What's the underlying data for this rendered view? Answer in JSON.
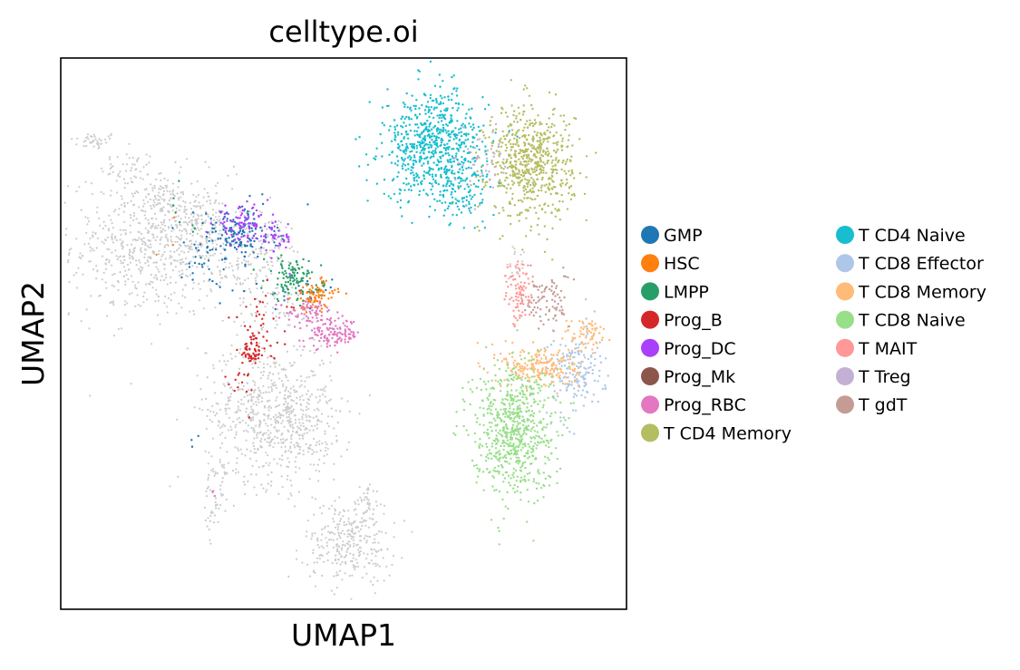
{
  "chart_data": {
    "type": "scatter",
    "title": "celltype.oi",
    "xlabel": "UMAP1",
    "ylabel": "UMAP2",
    "xticks": false,
    "yticks": false,
    "grid": false,
    "xlim": [
      0,
      100
    ],
    "ylim": [
      0,
      100
    ],
    "legend_placement": "right",
    "background_category": {
      "color": "#cccccc"
    },
    "series": [
      {
        "name": "GMP",
        "color": "#1f77b4"
      },
      {
        "name": "HSC",
        "color": "#ff7f0e"
      },
      {
        "name": "LMPP",
        "color": "#279e68"
      },
      {
        "name": "Prog_B",
        "color": "#d62728"
      },
      {
        "name": "Prog_DC",
        "color": "#aa40fc"
      },
      {
        "name": "Prog_Mk",
        "color": "#8c564b"
      },
      {
        "name": "Prog_RBC",
        "color": "#e377c2"
      },
      {
        "name": "T CD4 Memory",
        "color": "#b5bd61"
      },
      {
        "name": "T CD4 Naive",
        "color": "#17becf"
      },
      {
        "name": "T CD8 Effector",
        "color": "#aec7e8"
      },
      {
        "name": "T CD8 Memory",
        "color": "#ffbb78"
      },
      {
        "name": "T CD8 Naive",
        "color": "#98df8a"
      },
      {
        "name": "T MAIT",
        "color": "#ff9896"
      },
      {
        "name": "T Treg",
        "color": "#c5b0d5"
      },
      {
        "name": "T gdT",
        "color": "#c49c94"
      }
    ],
    "clusters": [
      {
        "category": "background",
        "center": [
          6,
          85
        ],
        "spread": [
          2.2,
          0.8
        ],
        "n": 40
      },
      {
        "category": "background",
        "center": [
          12,
          80
        ],
        "spread": [
          2.5,
          1.5
        ],
        "n": 40
      },
      {
        "category": "background",
        "center": [
          17,
          75
        ],
        "spread": [
          2,
          2
        ],
        "n": 40
      },
      {
        "category": "background",
        "center": [
          16,
          66
        ],
        "spread": [
          7,
          6.5
        ],
        "n": 650
      },
      {
        "category": "background",
        "center": [
          24,
          70
        ],
        "spread": [
          4,
          3
        ],
        "n": 150
      },
      {
        "category": "background",
        "center": [
          32,
          62
        ],
        "spread": [
          4,
          2.5
        ],
        "n": 90
      },
      {
        "category": "background",
        "center": [
          37,
          67
        ],
        "spread": [
          3,
          2.5
        ],
        "n": 70
      },
      {
        "category": "background",
        "center": [
          38,
          55
        ],
        "spread": [
          4,
          2
        ],
        "n": 60
      },
      {
        "category": "background",
        "center": [
          37,
          36
        ],
        "spread": [
          5.5,
          6.5
        ],
        "n": 650
      },
      {
        "category": "background",
        "center": [
          44,
          32
        ],
        "spread": [
          3,
          5
        ],
        "n": 90
      },
      {
        "category": "background",
        "center": [
          28,
          24
        ],
        "spread": [
          1.2,
          2.5
        ],
        "n": 30
      },
      {
        "category": "background",
        "center": [
          27,
          17
        ],
        "spread": [
          0.8,
          2.5
        ],
        "n": 25
      },
      {
        "category": "background",
        "center": [
          51,
          12
        ],
        "spread": [
          4,
          3.5
        ],
        "n": 280
      },
      {
        "category": "background",
        "center": [
          54,
          19
        ],
        "spread": [
          1.2,
          2
        ],
        "n": 45
      },
      {
        "category": "background",
        "center": [
          81,
          63
        ],
        "spread": [
          1.2,
          2
        ],
        "n": 15
      },
      {
        "category": "GMP",
        "center": [
          31,
          68
        ],
        "spread": [
          3.5,
          2.5
        ],
        "n": 140
      },
      {
        "category": "GMP",
        "center": [
          27,
          63
        ],
        "spread": [
          3,
          3
        ],
        "n": 35
      },
      {
        "category": "GMP",
        "center": [
          44,
          57
        ],
        "spread": [
          2,
          1.5
        ],
        "n": 20
      },
      {
        "category": "GMP",
        "center": [
          24,
          31
        ],
        "spread": [
          1,
          1
        ],
        "n": 3
      },
      {
        "category": "HSC",
        "center": [
          45,
          57
        ],
        "spread": [
          1.8,
          1.5
        ],
        "n": 90
      },
      {
        "category": "HSC",
        "center": [
          18,
          67
        ],
        "spread": [
          2,
          2
        ],
        "n": 3
      },
      {
        "category": "LMPP",
        "center": [
          41,
          60
        ],
        "spread": [
          2.5,
          2
        ],
        "n": 110
      },
      {
        "category": "LMPP",
        "center": [
          20,
          70
        ],
        "spread": [
          3,
          3
        ],
        "n": 8
      },
      {
        "category": "Prog_B",
        "center": [
          34,
          47
        ],
        "spread": [
          1.3,
          1.5
        ],
        "n": 60
      },
      {
        "category": "Prog_B",
        "center": [
          36,
          52
        ],
        "spread": [
          3,
          3
        ],
        "n": 35
      },
      {
        "category": "Prog_B",
        "center": [
          32,
          41
        ],
        "spread": [
          1.5,
          2
        ],
        "n": 15
      },
      {
        "category": "Prog_DC",
        "center": [
          32,
          70
        ],
        "spread": [
          2.5,
          1.5
        ],
        "n": 90
      },
      {
        "category": "Prog_DC",
        "center": [
          38,
          67
        ],
        "spread": [
          1.5,
          1.8
        ],
        "n": 40
      },
      {
        "category": "Prog_RBC",
        "center": [
          48,
          50
        ],
        "spread": [
          2.5,
          1.3
        ],
        "n": 130
      },
      {
        "category": "Prog_RBC",
        "center": [
          44,
          54
        ],
        "spread": [
          2,
          1
        ],
        "n": 60
      },
      {
        "category": "Prog_RBC",
        "center": [
          27,
          21
        ],
        "spread": [
          0.5,
          0.5
        ],
        "n": 3
      },
      {
        "category": "T CD4 Memory",
        "center": [
          83,
          81
        ],
        "spread": [
          3.8,
          5
        ],
        "n": 650
      },
      {
        "category": "T CD4 Naive",
        "center": [
          66,
          84
        ],
        "spread": [
          4.5,
          5
        ],
        "n": 700
      },
      {
        "category": "T CD4 Naive",
        "center": [
          71,
          76
        ],
        "spread": [
          2,
          2.5
        ],
        "n": 80
      },
      {
        "category": "T CD8 Effector",
        "center": [
          91,
          43
        ],
        "spread": [
          2.5,
          4
        ],
        "n": 170
      },
      {
        "category": "T CD8 Memory",
        "center": [
          85,
          44
        ],
        "spread": [
          3.5,
          2
        ],
        "n": 230
      },
      {
        "category": "T CD8 Memory",
        "center": [
          93,
          50
        ],
        "spread": [
          2,
          1.5
        ],
        "n": 60
      },
      {
        "category": "T CD8 Naive",
        "center": [
          80,
          33
        ],
        "spread": [
          3.6,
          6
        ],
        "n": 700
      },
      {
        "category": "T MAIT",
        "center": [
          81,
          57
        ],
        "spread": [
          1.2,
          3
        ],
        "n": 90
      },
      {
        "category": "T Treg",
        "center": [
          74,
          81
        ],
        "spread": [
          2.5,
          4
        ],
        "n": 45
      },
      {
        "category": "T gdT",
        "center": [
          86,
          56
        ],
        "spread": [
          2,
          2.5
        ],
        "n": 90
      }
    ]
  }
}
